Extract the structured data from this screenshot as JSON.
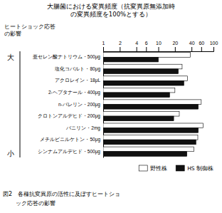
{
  "chart_data": {
    "type": "bar",
    "orientation": "horizontal",
    "title": [
      "大腸菌における変異頻度（抗変異原無添加時",
      "の変異頻度を100%とする）"
    ],
    "ylabel": [
      "ヒートショック応答",
      "の影響"
    ],
    "annotations": [
      "大",
      "小",
      "図2　各種抗変異原の活性に及ぼすヒートショ",
      "ック応答の影響"
    ],
    "categories": [
      "亜セレン酸ナトリウム・500μg",
      "塩化コバルト・80μg",
      "アクロレイン・18μL",
      "2-ヘプタナール・400μg",
      "n-バレリン・200μg",
      "クロトンアルデヒド・200μg",
      "バニリン・2mg",
      "メチルビニルケトン・50μg",
      "シンナムアルデヒド・500μg"
    ],
    "series": [
      {
        "name": "野性株",
        "color": "#ffffff",
        "values": [
          38,
          27,
          34,
          20,
          60,
          24,
          65,
          52,
          44
        ]
      },
      {
        "name": "HS 制御株",
        "color": "#111111",
        "values": [
          10,
          23,
          29,
          16,
          53,
          19,
          53,
          48,
          33
        ]
      }
    ],
    "xlim": [
      1,
      100
    ],
    "xticks": [
      1,
      2,
      4,
      6,
      10,
      20,
      40,
      60,
      100
    ],
    "log": "x",
    "grid": false,
    "legend": "lower right"
  }
}
